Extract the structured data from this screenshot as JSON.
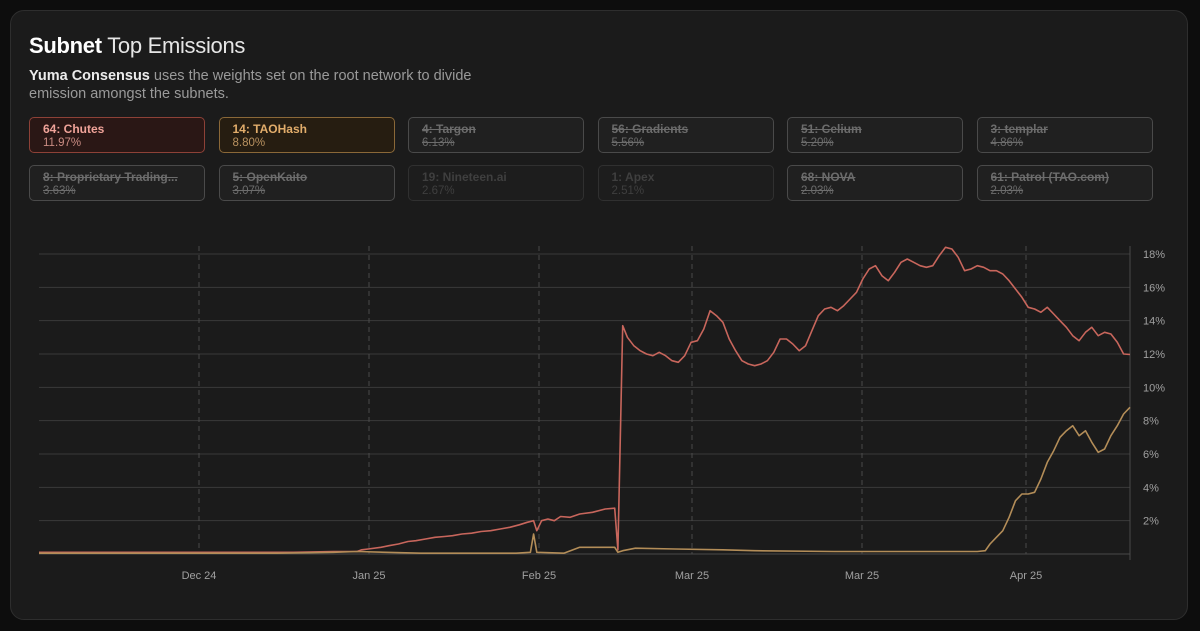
{
  "header": {
    "title_bold": "Subnet",
    "title_light": "Top Emissions",
    "desc_strong": "Yuma Consensus",
    "desc_rest": "uses the weights set on the root network to divide emission amongst the subnets."
  },
  "colors": {
    "chutes": "#c8665c",
    "taohash": "#b38d58",
    "grid": "#3a3a3a"
  },
  "legend": [
    {
      "name": "64: Chutes",
      "pct": "11.97%",
      "state": "active1"
    },
    {
      "name": "14: TAOHash",
      "pct": "8.80%",
      "state": "active2"
    },
    {
      "name": "4: Targon",
      "pct": "6.13%",
      "state": "off"
    },
    {
      "name": "56: Gradients",
      "pct": "5.56%",
      "state": "off"
    },
    {
      "name": "51: Celium",
      "pct": "5.20%",
      "state": "off"
    },
    {
      "name": "3: templar",
      "pct": "4.86%",
      "state": "off"
    },
    {
      "name": "8: Proprietary Trading...",
      "pct": "3.63%",
      "state": "off"
    },
    {
      "name": "5: OpenKaito",
      "pct": "3.07%",
      "state": "off"
    },
    {
      "name": "19: Nineteen.ai",
      "pct": "2.67%",
      "state": "dim"
    },
    {
      "name": "1: Apex",
      "pct": "2.51%",
      "state": "dim"
    },
    {
      "name": "68: NOVA",
      "pct": "2.03%",
      "state": "off"
    },
    {
      "name": "61: Patrol (TAO.com)",
      "pct": "2.03%",
      "state": "off"
    }
  ],
  "chart_data": {
    "type": "line",
    "x_ticks": [
      "Dec 24",
      "Jan 25",
      "Feb 25",
      "Mar 25",
      "Mar 25",
      "Apr 25"
    ],
    "y_ticks": [
      "2%",
      "4%",
      "6%",
      "8%",
      "10%",
      "12%",
      "14%",
      "16%",
      "18%"
    ],
    "ylim": [
      0,
      18
    ],
    "grid": true,
    "series": [
      {
        "name": "64: Chutes",
        "color": "#c8665c",
        "points": [
          [
            0,
            0.1
          ],
          [
            70,
            0.1
          ],
          [
            120,
            0.1
          ],
          [
            160,
            0.1
          ],
          [
            185,
            0.15
          ],
          [
            200,
            0.15
          ],
          [
            203,
            0.25
          ],
          [
            207,
            0.3
          ],
          [
            215,
            0.4
          ],
          [
            220,
            0.5
          ],
          [
            226,
            0.6
          ],
          [
            232,
            0.75
          ],
          [
            237,
            0.8
          ],
          [
            243,
            0.9
          ],
          [
            249,
            1.0
          ],
          [
            255,
            1.05
          ],
          [
            260,
            1.1
          ],
          [
            266,
            1.2
          ],
          [
            272,
            1.25
          ],
          [
            278,
            1.35
          ],
          [
            284,
            1.4
          ],
          [
            290,
            1.5
          ],
          [
            296,
            1.6
          ],
          [
            302,
            1.75
          ],
          [
            307,
            1.9
          ],
          [
            311,
            2.0
          ],
          [
            313,
            1.4
          ],
          [
            316,
            2.0
          ],
          [
            320,
            2.1
          ],
          [
            324,
            2.0
          ],
          [
            328,
            2.25
          ],
          [
            334,
            2.2
          ],
          [
            340,
            2.4
          ],
          [
            348,
            2.5
          ],
          [
            356,
            2.7
          ],
          [
            362,
            2.75
          ],
          [
            364,
            0.25
          ],
          [
            367,
            13.7
          ],
          [
            370,
            13.0
          ],
          [
            374,
            12.5
          ],
          [
            378,
            12.2
          ],
          [
            382,
            12.0
          ],
          [
            386,
            11.9
          ],
          [
            390,
            12.1
          ],
          [
            394,
            11.9
          ],
          [
            398,
            11.6
          ],
          [
            402,
            11.5
          ],
          [
            406,
            11.9
          ],
          [
            410,
            12.7
          ],
          [
            414,
            12.8
          ],
          [
            418,
            13.5
          ],
          [
            422,
            14.6
          ],
          [
            426,
            14.3
          ],
          [
            430,
            13.9
          ],
          [
            434,
            12.9
          ],
          [
            438,
            12.2
          ],
          [
            442,
            11.6
          ],
          [
            446,
            11.4
          ],
          [
            450,
            11.3
          ],
          [
            454,
            11.4
          ],
          [
            458,
            11.6
          ],
          [
            462,
            12.1
          ],
          [
            466,
            12.9
          ],
          [
            470,
            12.9
          ],
          [
            474,
            12.6
          ],
          [
            478,
            12.2
          ],
          [
            482,
            12.5
          ],
          [
            486,
            13.4
          ],
          [
            490,
            14.3
          ],
          [
            494,
            14.7
          ],
          [
            498,
            14.8
          ],
          [
            502,
            14.6
          ],
          [
            506,
            14.9
          ],
          [
            510,
            15.3
          ],
          [
            514,
            15.7
          ],
          [
            518,
            16.5
          ],
          [
            522,
            17.1
          ],
          [
            526,
            17.3
          ],
          [
            530,
            16.7
          ],
          [
            534,
            16.4
          ],
          [
            538,
            16.9
          ],
          [
            542,
            17.5
          ],
          [
            546,
            17.7
          ],
          [
            550,
            17.5
          ],
          [
            554,
            17.3
          ],
          [
            558,
            17.2
          ],
          [
            562,
            17.3
          ],
          [
            566,
            17.9
          ],
          [
            570,
            18.4
          ],
          [
            574,
            18.3
          ],
          [
            578,
            17.8
          ],
          [
            582,
            17.0
          ],
          [
            586,
            17.1
          ],
          [
            590,
            17.3
          ],
          [
            594,
            17.2
          ],
          [
            598,
            17.0
          ],
          [
            602,
            17.0
          ],
          [
            606,
            16.8
          ],
          [
            610,
            16.4
          ],
          [
            614,
            15.9
          ],
          [
            618,
            15.4
          ],
          [
            622,
            14.8
          ],
          [
            626,
            14.7
          ],
          [
            630,
            14.5
          ],
          [
            634,
            14.8
          ],
          [
            638,
            14.4
          ],
          [
            642,
            14.0
          ],
          [
            646,
            13.6
          ],
          [
            650,
            13.1
          ],
          [
            654,
            12.8
          ],
          [
            658,
            13.3
          ],
          [
            662,
            13.6
          ],
          [
            666,
            13.1
          ],
          [
            670,
            13.3
          ],
          [
            674,
            13.2
          ],
          [
            678,
            12.7
          ],
          [
            682,
            12.0
          ],
          [
            686,
            11.97
          ]
        ]
      },
      {
        "name": "14: TAOHash",
        "color": "#b38d58",
        "points": [
          [
            0,
            0.05
          ],
          [
            150,
            0.05
          ],
          [
            185,
            0.1
          ],
          [
            200,
            0.15
          ],
          [
            240,
            0.05
          ],
          [
            300,
            0.05
          ],
          [
            309,
            0.1
          ],
          [
            311,
            1.2
          ],
          [
            313,
            0.1
          ],
          [
            330,
            0.05
          ],
          [
            340,
            0.4
          ],
          [
            362,
            0.4
          ],
          [
            364,
            0.1
          ],
          [
            367,
            0.2
          ],
          [
            375,
            0.35
          ],
          [
            400,
            0.3
          ],
          [
            430,
            0.25
          ],
          [
            450,
            0.2
          ],
          [
            500,
            0.15
          ],
          [
            550,
            0.15
          ],
          [
            590,
            0.15
          ],
          [
            595,
            0.2
          ],
          [
            598,
            0.6
          ],
          [
            602,
            1.0
          ],
          [
            606,
            1.4
          ],
          [
            610,
            2.2
          ],
          [
            614,
            3.2
          ],
          [
            618,
            3.6
          ],
          [
            622,
            3.6
          ],
          [
            626,
            3.7
          ],
          [
            630,
            4.5
          ],
          [
            634,
            5.5
          ],
          [
            638,
            6.2
          ],
          [
            642,
            7.0
          ],
          [
            646,
            7.4
          ],
          [
            650,
            7.7
          ],
          [
            654,
            7.1
          ],
          [
            658,
            7.4
          ],
          [
            662,
            6.7
          ],
          [
            666,
            6.1
          ],
          [
            670,
            6.3
          ],
          [
            674,
            7.1
          ],
          [
            678,
            7.7
          ],
          [
            682,
            8.4
          ],
          [
            686,
            8.8
          ]
        ]
      }
    ]
  }
}
